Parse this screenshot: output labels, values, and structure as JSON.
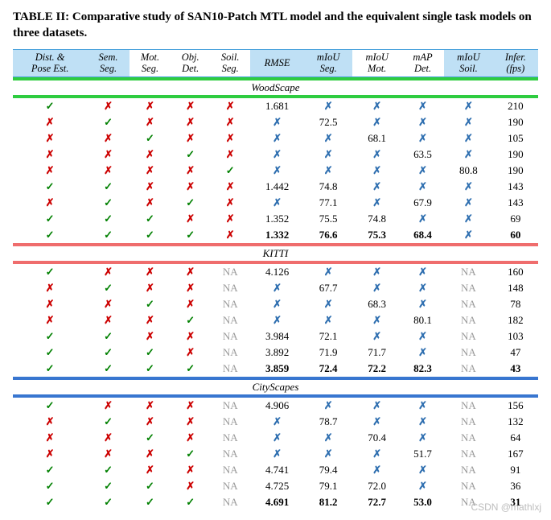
{
  "caption": "TABLE II: Comparative study of SAN10-Patch MTL model and the equivalent single task models on three datasets.",
  "columns": [
    {
      "line1": "Dist. &",
      "line2": "Pose Est.",
      "bg": "#bfe0f5"
    },
    {
      "line1": "Sem.",
      "line2": "Seg.",
      "bg": "#bfe0f5"
    },
    {
      "line1": "Mot.",
      "line2": "Seg.",
      "bg": "#ffffff"
    },
    {
      "line1": "Obj.",
      "line2": "Det.",
      "bg": "#ffffff"
    },
    {
      "line1": "Soil.",
      "line2": "Seg.",
      "bg": "#ffffff"
    },
    {
      "line1": "RMSE",
      "line2": "",
      "bg": "#bfe0f5"
    },
    {
      "line1": "mIoU",
      "line2": "Seg.",
      "bg": "#bfe0f5"
    },
    {
      "line1": "mIoU",
      "line2": "Mot.",
      "bg": "#ffffff"
    },
    {
      "line1": "mAP",
      "line2": "Det.",
      "bg": "#ffffff"
    },
    {
      "line1": "mIoU",
      "line2": "Soil.",
      "bg": "#bfe0f5"
    },
    {
      "line1": "Infer.",
      "line2": "(fps)",
      "bg": "#bfe0f5"
    }
  ],
  "sections": [
    {
      "name": "WoodScape",
      "rule_color": "#2ecc40",
      "rows": [
        {
          "t": [
            "c",
            "x",
            "x",
            "x",
            "x"
          ],
          "vals": [
            "1.681",
            "X",
            "X",
            "X",
            "X",
            "210"
          ]
        },
        {
          "t": [
            "x",
            "c",
            "x",
            "x",
            "x"
          ],
          "vals": [
            "X",
            "72.5",
            "X",
            "X",
            "X",
            "190"
          ]
        },
        {
          "t": [
            "x",
            "x",
            "c",
            "x",
            "x"
          ],
          "vals": [
            "X",
            "X",
            "68.1",
            "X",
            "X",
            "105"
          ]
        },
        {
          "t": [
            "x",
            "x",
            "x",
            "c",
            "x"
          ],
          "vals": [
            "X",
            "X",
            "X",
            "63.5",
            "X",
            "190"
          ]
        },
        {
          "t": [
            "x",
            "x",
            "x",
            "x",
            "c"
          ],
          "vals": [
            "X",
            "X",
            "X",
            "X",
            "80.8",
            "190"
          ]
        },
        {
          "t": [
            "c",
            "c",
            "x",
            "x",
            "x"
          ],
          "vals": [
            "1.442",
            "74.8",
            "X",
            "X",
            "X",
            "143"
          ]
        },
        {
          "t": [
            "x",
            "c",
            "x",
            "c",
            "x"
          ],
          "vals": [
            "X",
            "77.1",
            "X",
            "67.9",
            "X",
            "143"
          ]
        },
        {
          "t": [
            "c",
            "c",
            "c",
            "x",
            "x"
          ],
          "vals": [
            "1.352",
            "75.5",
            "74.8",
            "X",
            "X",
            "69"
          ]
        },
        {
          "t": [
            "c",
            "c",
            "c",
            "c",
            "x"
          ],
          "vals": [
            "1.332",
            "76.6",
            "75.3",
            "68.4",
            "X",
            "60"
          ],
          "bold": true
        }
      ]
    },
    {
      "name": "KITTI",
      "rule_color": "#ef6d6d",
      "rows": [
        {
          "t": [
            "c",
            "x",
            "x",
            "x",
            "NA"
          ],
          "vals": [
            "4.126",
            "X",
            "X",
            "X",
            "NA",
            "160"
          ]
        },
        {
          "t": [
            "x",
            "c",
            "x",
            "x",
            "NA"
          ],
          "vals": [
            "X",
            "67.7",
            "X",
            "X",
            "NA",
            "148"
          ]
        },
        {
          "t": [
            "x",
            "x",
            "c",
            "x",
            "NA"
          ],
          "vals": [
            "X",
            "X",
            "68.3",
            "X",
            "NA",
            "78"
          ]
        },
        {
          "t": [
            "x",
            "x",
            "x",
            "c",
            "NA"
          ],
          "vals": [
            "X",
            "X",
            "X",
            "80.1",
            "NA",
            "182"
          ]
        },
        {
          "t": [
            "c",
            "c",
            "x",
            "x",
            "NA"
          ],
          "vals": [
            "3.984",
            "72.1",
            "X",
            "X",
            "NA",
            "103"
          ]
        },
        {
          "t": [
            "c",
            "c",
            "c",
            "x",
            "NA"
          ],
          "vals": [
            "3.892",
            "71.9",
            "71.7",
            "X",
            "NA",
            "47"
          ]
        },
        {
          "t": [
            "c",
            "c",
            "c",
            "c",
            "NA"
          ],
          "vals": [
            "3.859",
            "72.4",
            "72.2",
            "82.3",
            "NA",
            "43"
          ],
          "bold": true
        }
      ]
    },
    {
      "name": "CityScapes",
      "rule_color": "#3876d0",
      "rows": [
        {
          "t": [
            "c",
            "x",
            "x",
            "x",
            "NA"
          ],
          "vals": [
            "4.906",
            "X",
            "X",
            "X",
            "NA",
            "156"
          ]
        },
        {
          "t": [
            "x",
            "c",
            "x",
            "x",
            "NA"
          ],
          "vals": [
            "X",
            "78.7",
            "X",
            "X",
            "NA",
            "132"
          ]
        },
        {
          "t": [
            "x",
            "x",
            "c",
            "x",
            "NA"
          ],
          "vals": [
            "X",
            "X",
            "70.4",
            "X",
            "NA",
            "64"
          ]
        },
        {
          "t": [
            "x",
            "x",
            "x",
            "c",
            "NA"
          ],
          "vals": [
            "X",
            "X",
            "X",
            "51.7",
            "NA",
            "167"
          ]
        },
        {
          "t": [
            "c",
            "c",
            "x",
            "x",
            "NA"
          ],
          "vals": [
            "4.741",
            "79.4",
            "X",
            "X",
            "NA",
            "91"
          ]
        },
        {
          "t": [
            "c",
            "c",
            "c",
            "x",
            "NA"
          ],
          "vals": [
            "4.725",
            "79.1",
            "72.0",
            "X",
            "NA",
            "36"
          ]
        },
        {
          "t": [
            "c",
            "c",
            "c",
            "c",
            "NA"
          ],
          "vals": [
            "4.691",
            "81.2",
            "72.7",
            "53.0",
            "NA",
            "31"
          ],
          "bold": true
        }
      ]
    }
  ],
  "header_border_color": "#4da3dd",
  "watermark": "CSDN @mathlxj"
}
